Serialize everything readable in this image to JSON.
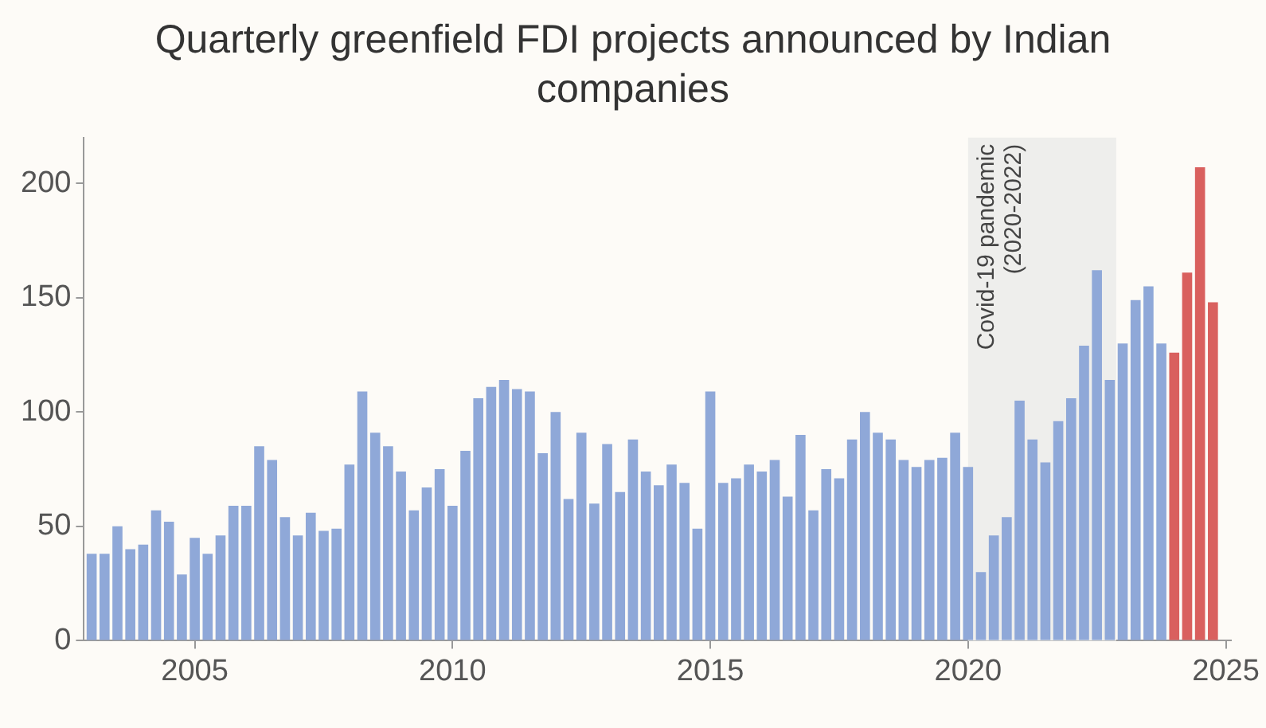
{
  "chart_data": {
    "type": "bar",
    "title": "Quarterly greenfield FDI projects announced by Indian companies",
    "x": [
      2003,
      2003.25,
      2003.5,
      2003.75,
      2004,
      2004.25,
      2004.5,
      2004.75,
      2005,
      2005.25,
      2005.5,
      2005.75,
      2006,
      2006.25,
      2006.5,
      2006.75,
      2007,
      2007.25,
      2007.5,
      2007.75,
      2008,
      2008.25,
      2008.5,
      2008.75,
      2009,
      2009.25,
      2009.5,
      2009.75,
      2010,
      2010.25,
      2010.5,
      2010.75,
      2011,
      2011.25,
      2011.5,
      2011.75,
      2012,
      2012.25,
      2012.5,
      2012.75,
      2013,
      2013.25,
      2013.5,
      2013.75,
      2014,
      2014.25,
      2014.5,
      2014.75,
      2015,
      2015.25,
      2015.5,
      2015.75,
      2016,
      2016.25,
      2016.5,
      2016.75,
      2017,
      2017.25,
      2017.5,
      2017.75,
      2018,
      2018.25,
      2018.5,
      2018.75,
      2019,
      2019.25,
      2019.5,
      2019.75,
      2020,
      2020.25,
      2020.5,
      2020.75,
      2021,
      2021.25,
      2021.5,
      2021.75,
      2022,
      2022.25,
      2022.5,
      2022.75,
      2023,
      2023.25,
      2023.5,
      2023.75,
      2024,
      2024.25,
      2024.5,
      2024.75
    ],
    "values": [
      38,
      38,
      50,
      40,
      42,
      57,
      52,
      29,
      45,
      38,
      46,
      59,
      59,
      85,
      79,
      54,
      46,
      56,
      48,
      49,
      77,
      109,
      91,
      85,
      74,
      57,
      67,
      75,
      59,
      83,
      106,
      111,
      114,
      110,
      109,
      82,
      100,
      62,
      91,
      60,
      86,
      65,
      88,
      74,
      68,
      77,
      69,
      49,
      109,
      69,
      71,
      77,
      74,
      79,
      63,
      90,
      57,
      75,
      71,
      88,
      100,
      91,
      88,
      79,
      76,
      79,
      80,
      91,
      76,
      30,
      46,
      54,
      105,
      88,
      78,
      96,
      106,
      129,
      162,
      114,
      130,
      149,
      155,
      130,
      126,
      161,
      207,
      148
    ],
    "colors": [
      "#8fa8d8",
      "#8fa8d8",
      "#8fa8d8",
      "#8fa8d8",
      "#8fa8d8",
      "#8fa8d8",
      "#8fa8d8",
      "#8fa8d8",
      "#8fa8d8",
      "#8fa8d8",
      "#8fa8d8",
      "#8fa8d8",
      "#8fa8d8",
      "#8fa8d8",
      "#8fa8d8",
      "#8fa8d8",
      "#8fa8d8",
      "#8fa8d8",
      "#8fa8d8",
      "#8fa8d8",
      "#8fa8d8",
      "#8fa8d8",
      "#8fa8d8",
      "#8fa8d8",
      "#8fa8d8",
      "#8fa8d8",
      "#8fa8d8",
      "#8fa8d8",
      "#8fa8d8",
      "#8fa8d8",
      "#8fa8d8",
      "#8fa8d8",
      "#8fa8d8",
      "#8fa8d8",
      "#8fa8d8",
      "#8fa8d8",
      "#8fa8d8",
      "#8fa8d8",
      "#8fa8d8",
      "#8fa8d8",
      "#8fa8d8",
      "#8fa8d8",
      "#8fa8d8",
      "#8fa8d8",
      "#8fa8d8",
      "#8fa8d8",
      "#8fa8d8",
      "#8fa8d8",
      "#8fa8d8",
      "#8fa8d8",
      "#8fa8d8",
      "#8fa8d8",
      "#8fa8d8",
      "#8fa8d8",
      "#8fa8d8",
      "#8fa8d8",
      "#8fa8d8",
      "#8fa8d8",
      "#8fa8d8",
      "#8fa8d8",
      "#8fa8d8",
      "#8fa8d8",
      "#8fa8d8",
      "#8fa8d8",
      "#8fa8d8",
      "#8fa8d8",
      "#8fa8d8",
      "#8fa8d8",
      "#8fa8d8",
      "#8fa8d8",
      "#8fa8d8",
      "#8fa8d8",
      "#8fa8d8",
      "#8fa8d8",
      "#8fa8d8",
      "#8fa8d8",
      "#8fa8d8",
      "#8fa8d8",
      "#8fa8d8",
      "#8fa8d8",
      "#8fa8d8",
      "#8fa8d8",
      "#8fa8d8",
      "#8fa8d8",
      "#d9605e",
      "#d9605e",
      "#d9605e",
      "#d9605e"
    ],
    "xlim": [
      2002.85,
      2025.1
    ],
    "xticks": [
      2005,
      2010,
      2015,
      2020,
      2025
    ],
    "ylim": [
      0,
      220
    ],
    "yticks": [
      0,
      50,
      100,
      150,
      200
    ],
    "bands": [
      {
        "axis": "x",
        "from": 2020,
        "to": 2022.875,
        "label": "Covid-19 pandemic (2020-2022)",
        "color": "#eeeeec"
      }
    ]
  }
}
